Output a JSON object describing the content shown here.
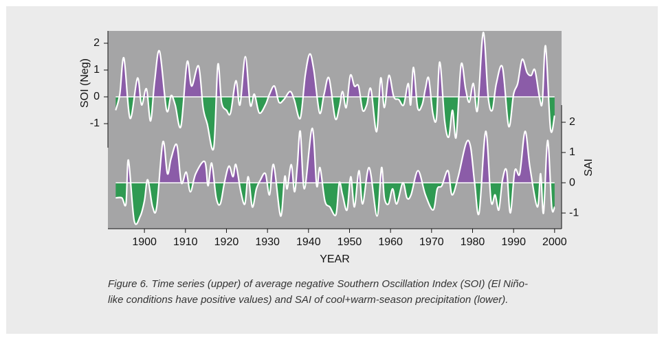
{
  "chart_data": {
    "type": "area",
    "xlabel": "YEAR",
    "ylabel": "SOI (Neg)",
    "y2label": "SAI",
    "caption": [
      "Figure 6. Time series (upper) of average negative Southern Oscillation Index (SOI) (El Niño-",
      "like conditions have positive values) and SAI of cool+warm-season precipitation (lower)."
    ],
    "xlim": [
      1891.1,
      2001.7
    ],
    "xticks": [
      1900,
      1910,
      1920,
      1930,
      1940,
      1950,
      1960,
      1970,
      1980,
      1990,
      2000
    ],
    "ylim": [
      -4.92,
      2.46
    ],
    "yticks": [
      -1,
      0,
      1,
      2
    ],
    "y2lim": [
      -1.52,
      5.02
    ],
    "y2ticks": [
      -1,
      0,
      1,
      2
    ],
    "positive_color": "#8b5ca8",
    "negative_color": "#2f9a52",
    "background": "#a5a5a6",
    "series": [
      {
        "axis": "y",
        "color": "#ffffff",
        "x": [
          1893,
          1894,
          1895,
          1896.5,
          1898.3,
          1899.3,
          1900.5,
          1901.5,
          1902.5,
          1903.7,
          1905.4,
          1906.5,
          1907.5,
          1908.9,
          1910.4,
          1911.5,
          1913.2,
          1914.3,
          1915.3,
          1916.9,
          1917.9,
          1918.8,
          1920,
          1921,
          1922.3,
          1923.3,
          1924.6,
          1925.8,
          1926.8,
          1928,
          1929.5,
          1930.5,
          1931.7,
          1932.8,
          1934,
          1935.5,
          1936.5,
          1938,
          1939.2,
          1940.3,
          1941.3,
          1942.7,
          1943.8,
          1945,
          1946.5,
          1947.5,
          1948.3,
          1949.2,
          1950.2,
          1951.2,
          1952.2,
          1953.2,
          1954.2,
          1955.2,
          1956.6,
          1957.6,
          1958.5,
          1959.6,
          1960.8,
          1962,
          1963.2,
          1964.3,
          1964.9,
          1965.6,
          1966.6,
          1967.7,
          1968.5,
          1969.3,
          1970.3,
          1971.2,
          1972,
          1973.2,
          1974.2,
          1975.1,
          1976,
          1977.2,
          1978.3,
          1979.2,
          1980.2,
          1981.2,
          1982.6,
          1983.8,
          1984.8,
          1985.8,
          1987.3,
          1988.8,
          1990,
          1991,
          1992.1,
          1993.3,
          1994.3,
          1995.2,
          1996.3,
          1997,
          1997.8,
          1999,
          2000
        ],
        "values": [
          -0.5,
          0.1,
          1.45,
          -0.8,
          0.7,
          -0.3,
          0.3,
          -0.9,
          0.6,
          1.7,
          -0.5,
          0.05,
          -0.3,
          -1.1,
          1.3,
          0.4,
          1.15,
          -0.4,
          -1.0,
          -1.9,
          1.2,
          -0.2,
          -0.5,
          -0.6,
          0.6,
          -0.3,
          1.5,
          -0.3,
          0.1,
          -0.6,
          -0.3,
          0.1,
          0.4,
          -0.2,
          -0.1,
          0.2,
          -0.1,
          -0.8,
          0.8,
          1.6,
          1.0,
          -0.6,
          0.1,
          0.7,
          -0.8,
          -0.4,
          0.2,
          -0.4,
          0.8,
          0.4,
          0.4,
          -0.5,
          -0.3,
          0.3,
          -1.3,
          0.7,
          -0.4,
          0.8,
          0,
          -0.1,
          -0.3,
          0.5,
          -0.3,
          1.1,
          -0.4,
          -0.3,
          0.3,
          0.7,
          -0.6,
          -0.8,
          1.3,
          -0.9,
          -1.5,
          -0.5,
          -1.5,
          1.2,
          0.3,
          -0.2,
          0.5,
          -0.5,
          2.4,
          0,
          -0.5,
          0.5,
          1.1,
          -1.1,
          0.1,
          0.5,
          1.4,
          0.9,
          0.8,
          1.0,
          0,
          -0.2,
          1.9,
          -1.2,
          -0.7
        ]
      },
      {
        "axis": "y2",
        "color": "#ffffff",
        "x": [
          1893,
          1894.5,
          1895.5,
          1896.1,
          1897.5,
          1899,
          1900,
          1900.8,
          1902,
          1903,
          1904.5,
          1905.6,
          1906.5,
          1907.9,
          1909,
          1910.2,
          1911.2,
          1912.5,
          1914.7,
          1915.5,
          1916.4,
          1917.5,
          1918.5,
          1919.5,
          1920.6,
          1921.6,
          1922.3,
          1923.5,
          1924.5,
          1925.3,
          1926.3,
          1927.3,
          1928.3,
          1929.5,
          1930.5,
          1931.5,
          1933.2,
          1934.2,
          1934.8,
          1935.8,
          1936.6,
          1937.3,
          1938,
          1939,
          1940.9,
          1942,
          1942.8,
          1944,
          1945.2,
          1946.7,
          1947.5,
          1948.3,
          1949.4,
          1950.3,
          1951.2,
          1952.3,
          1953.2,
          1954.8,
          1956.7,
          1957.8,
          1958.5,
          1959.5,
          1960.5,
          1961.5,
          1963,
          1964,
          1965,
          1966.7,
          1968.5,
          1970.4,
          1971.4,
          1972.5,
          1974,
          1975,
          1976.5,
          1978.4,
          1979.5,
          1980.5,
          1981.6,
          1983.2,
          1984.5,
          1985.5,
          1986.4,
          1987.3,
          1988.3,
          1989.2,
          1990.3,
          1991.5,
          1992.8,
          1994,
          1995.8,
          1996.6,
          1997.3,
          1998.3,
          1999.3,
          2000
        ],
        "values": [
          -0.5,
          -0.5,
          -0.7,
          0.75,
          -1.25,
          -1.1,
          -0.6,
          0.1,
          -0.8,
          -0.8,
          1.35,
          0.3,
          0.8,
          1.25,
          0,
          0.35,
          -0.3,
          0.3,
          0.7,
          -0.1,
          0.65,
          -0.5,
          -0.7,
          0,
          0.55,
          0.2,
          0.6,
          -0.3,
          -0.7,
          0.2,
          -0.8,
          -0.2,
          0.1,
          0.3,
          -0.4,
          0.6,
          -1.1,
          0.2,
          -0.2,
          0.6,
          -0.3,
          0.6,
          1.7,
          -0.2,
          1.8,
          -0.1,
          0.5,
          -0.6,
          -0.8,
          -1.05,
          0,
          -0.4,
          -0.9,
          0.2,
          -0.8,
          0.4,
          -0.7,
          0.5,
          -1.1,
          0.5,
          -0.5,
          -0.7,
          -0.2,
          -0.7,
          0,
          -0.5,
          -0.4,
          0.4,
          -0.4,
          -0.9,
          -0.2,
          -0.1,
          0.4,
          -0.4,
          0.2,
          1.3,
          1.2,
          0,
          -1.0,
          1.7,
          -0.6,
          -0.4,
          -0.9,
          0.1,
          0.4,
          -1.0,
          0.4,
          0.3,
          1.7,
          0.5,
          -0.8,
          0.3,
          -1.0,
          1.4,
          -0.8,
          -0.8
        ]
      }
    ]
  }
}
